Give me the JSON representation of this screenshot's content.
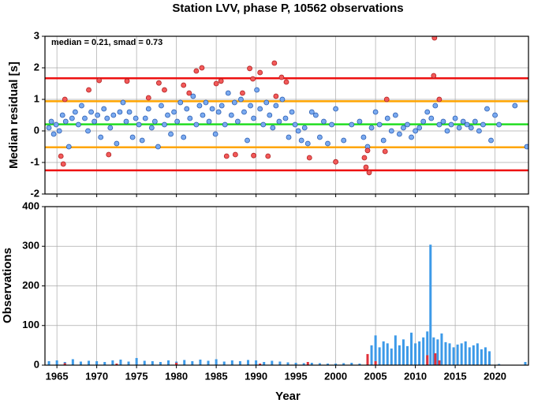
{
  "chart_data": [
    {
      "type": "scatter",
      "title": "Station LVV, phase P, 10562 observations",
      "ylabel": "Median residual [s]",
      "annotation": "median = 0.21, smad = 0.73",
      "xlim": [
        1963.5,
        2024.2
      ],
      "ylim": [
        -2,
        3
      ],
      "yticks": [
        -2,
        -1,
        0,
        1,
        2,
        3
      ],
      "grid": true,
      "hlines": [
        {
          "value": 1.67,
          "color": "#ee1111"
        },
        {
          "value": 0.94,
          "color": "#ffa500"
        },
        {
          "value": 0.21,
          "color": "#22dd22"
        },
        {
          "value": -0.52,
          "color": "#ffa500"
        },
        {
          "value": -1.25,
          "color": "#ee1111"
        }
      ],
      "series": [
        {
          "color": "#7aaaf0",
          "edgecolor": "#2a5cb0",
          "x": [
            1964.0,
            1964.3,
            1964.6,
            1964.9,
            1965.3,
            1965.7,
            1966.1,
            1966.5,
            1966.9,
            1967.3,
            1967.7,
            1968.1,
            1968.5,
            1968.9,
            1969.3,
            1969.7,
            1970.1,
            1970.5,
            1970.9,
            1971.3,
            1971.7,
            1972.1,
            1972.5,
            1972.9,
            1973.3,
            1973.7,
            1974.1,
            1974.5,
            1974.9,
            1975.3,
            1975.7,
            1976.1,
            1976.5,
            1976.9,
            1977.3,
            1977.7,
            1978.1,
            1978.5,
            1978.9,
            1979.3,
            1979.7,
            1980.1,
            1980.5,
            1980.9,
            1981.3,
            1981.7,
            1982.1,
            1982.5,
            1982.9,
            1983.3,
            1983.7,
            1984.1,
            1984.5,
            1984.9,
            1985.3,
            1985.7,
            1986.1,
            1986.5,
            1986.9,
            1987.3,
            1987.7,
            1988.1,
            1988.5,
            1988.9,
            1989.3,
            1989.7,
            1990.1,
            1990.5,
            1990.9,
            1991.3,
            1991.7,
            1992.1,
            1992.5,
            1992.9,
            1993.3,
            1993.7,
            1994.1,
            1994.5,
            1994.9,
            1995.3,
            1995.7,
            1996.1,
            1996.5,
            1997.0,
            1997.5,
            1998.0,
            1998.5,
            1999.0,
            1999.5,
            2000.0,
            2001.0,
            2002.0,
            2003.0,
            2003.5,
            2004.0,
            2004.5,
            2005.0,
            2005.5,
            2006.0,
            2006.5,
            2007.0,
            2007.5,
            2008.0,
            2008.5,
            2009.0,
            2009.5,
            2010.0,
            2010.5,
            2011.0,
            2011.5,
            2012.0,
            2012.5,
            2013.0,
            2013.5,
            2014.0,
            2014.5,
            2015.0,
            2015.5,
            2016.0,
            2016.5,
            2017.0,
            2017.5,
            2018.0,
            2018.5,
            2019.0,
            2019.5,
            2020.0,
            2020.5,
            2022.5,
            2024.0
          ],
          "values": [
            0.1,
            0.3,
            -0.1,
            0.2,
            0.0,
            0.5,
            0.3,
            -0.5,
            0.4,
            0.6,
            0.2,
            0.8,
            0.4,
            0.0,
            0.6,
            0.3,
            0.5,
            -0.2,
            0.7,
            0.4,
            0.1,
            0.5,
            -0.4,
            0.6,
            0.9,
            0.3,
            0.6,
            -0.2,
            0.4,
            0.2,
            -0.3,
            0.4,
            0.7,
            0.1,
            0.3,
            -0.5,
            0.8,
            0.2,
            0.5,
            -0.1,
            0.6,
            0.3,
            0.9,
            -0.2,
            0.7,
            0.4,
            1.1,
            0.2,
            0.8,
            0.5,
            0.9,
            0.3,
            0.7,
            -0.1,
            0.6,
            0.8,
            0.2,
            1.2,
            0.5,
            0.9,
            0.3,
            1.0,
            0.6,
            -0.3,
            0.8,
            0.4,
            1.3,
            0.7,
            0.2,
            0.9,
            0.5,
            0.1,
            0.8,
            0.3,
            1.0,
            0.4,
            -0.2,
            0.6,
            0.2,
            0.0,
            -0.3,
            0.1,
            -0.4,
            0.6,
            0.5,
            -0.2,
            0.3,
            -0.4,
            0.2,
            0.7,
            -0.3,
            0.2,
            0.3,
            -0.2,
            -0.5,
            0.1,
            0.6,
            0.2,
            -0.3,
            0.4,
            0.0,
            0.5,
            -0.1,
            0.1,
            0.2,
            -0.2,
            0.0,
            0.1,
            0.3,
            0.6,
            0.4,
            0.8,
            0.2,
            0.3,
            0.0,
            0.2,
            0.4,
            0.1,
            0.3,
            0.2,
            0.1,
            0.3,
            0.0,
            0.2,
            0.7,
            -0.3,
            0.5,
            0.2,
            0.8,
            -0.5
          ]
        },
        {
          "color": "#f25a5a",
          "edgecolor": "#b02020",
          "x": [
            1965.5,
            1965.8,
            1966.0,
            1969.0,
            1970.3,
            1971.5,
            1973.8,
            1976.5,
            1977.8,
            1978.5,
            1980.9,
            1981.6,
            1982.5,
            1983.2,
            1985.0,
            1985.6,
            1986.3,
            1987.4,
            1988.3,
            1989.2,
            1989.6,
            1989.7,
            1990.5,
            1991.5,
            1992.3,
            1992.5,
            1993.2,
            1993.8,
            1996.7,
            2000.0,
            2003.6,
            2003.8,
            2004.2,
            2004.0,
            2006.4,
            2006.2,
            2012.4,
            2012.3,
            2013.0
          ],
          "values": [
            -0.8,
            -1.05,
            1.0,
            1.3,
            1.6,
            -0.75,
            1.58,
            1.05,
            1.52,
            1.3,
            1.45,
            1.2,
            1.9,
            2.0,
            1.5,
            1.58,
            -0.8,
            -0.75,
            1.2,
            1.98,
            1.65,
            -0.78,
            1.85,
            -0.8,
            2.15,
            1.1,
            1.7,
            1.55,
            -0.85,
            -0.98,
            -0.85,
            -1.15,
            -1.32,
            -0.62,
            1.0,
            -0.65,
            2.95,
            1.75,
            1.0
          ]
        }
      ]
    },
    {
      "type": "bar",
      "ylabel": "Observations",
      "xlabel": "Year",
      "xlim": [
        1963.5,
        2024.2
      ],
      "ylim": [
        0,
        400
      ],
      "yticks": [
        0,
        100,
        200,
        300,
        400
      ],
      "xticks": [
        1965,
        1970,
        1975,
        1980,
        1985,
        1990,
        1995,
        2000,
        2005,
        2010,
        2015,
        2020
      ],
      "grid": true,
      "series": [
        {
          "color": "#3d9ae8",
          "x": [
            1964,
            1965,
            1966,
            1967,
            1968,
            1969,
            1970,
            1971,
            1972,
            1973,
            1974,
            1975,
            1976,
            1977,
            1978,
            1979,
            1980,
            1981,
            1982,
            1983,
            1984,
            1985,
            1986,
            1987,
            1988,
            1989,
            1990,
            1991,
            1992,
            1993,
            1994,
            1995,
            1996,
            1997,
            1998,
            1999,
            2000,
            2001,
            2002,
            2003,
            2004.0,
            2004.5,
            2005.0,
            2005.5,
            2006.0,
            2006.5,
            2007.0,
            2007.5,
            2008.0,
            2008.5,
            2009.0,
            2009.5,
            2010.0,
            2010.5,
            2011.0,
            2011.5,
            2011.9,
            2012.3,
            2012.8,
            2013.3,
            2013.8,
            2014.3,
            2014.8,
            2015.3,
            2015.8,
            2016.3,
            2016.8,
            2017.3,
            2017.8,
            2018.3,
            2018.8,
            2019.3,
            2020.5,
            2023.8
          ],
          "values": [
            10,
            12,
            8,
            15,
            9,
            11,
            10,
            8,
            12,
            14,
            9,
            18,
            11,
            10,
            8,
            12,
            9,
            13,
            10,
            14,
            11,
            15,
            9,
            12,
            10,
            13,
            12,
            8,
            11,
            9,
            7,
            6,
            5,
            6,
            5,
            4,
            4,
            5,
            6,
            4,
            15,
            50,
            75,
            45,
            60,
            55,
            42,
            75,
            50,
            65,
            48,
            82,
            55,
            60,
            70,
            85,
            304,
            70,
            65,
            80,
            58,
            55,
            45,
            52,
            55,
            60,
            45,
            50,
            55,
            40,
            45,
            35,
            3,
            8
          ]
        },
        {
          "color": "#e0303a",
          "x": [
            1966.0,
            1972.5,
            1980.0,
            1990.5,
            1996.5,
            2004.0,
            2005.0,
            2011.5,
            2012.5,
            2013.0
          ],
          "values": [
            5,
            4,
            6,
            4,
            8,
            28,
            10,
            25,
            30,
            12
          ]
        }
      ]
    }
  ]
}
